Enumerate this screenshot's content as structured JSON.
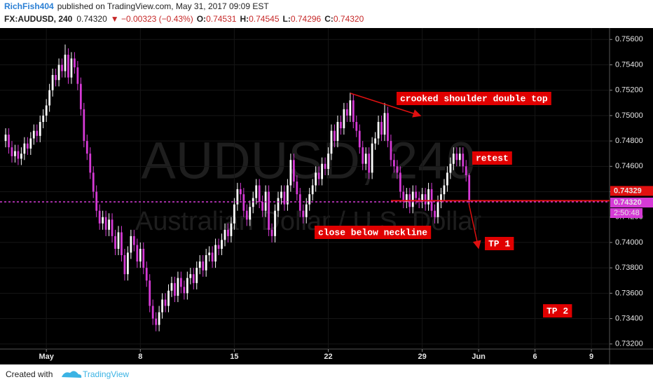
{
  "header": {
    "author": "RichFish404",
    "published": "published on TradingView.com, May 31, 2017 09:09 EST"
  },
  "footer": {
    "created": "Created with",
    "brand": "TradingView"
  },
  "chart_data": {
    "type": "candlestick",
    "symbol": "FX:AUDUSD, 240",
    "last": "0.74320",
    "change": "▼ −0.00323 (−0.43%)",
    "quote": [
      {
        "label": "O:",
        "value": "0.74531"
      },
      {
        "label": "H:",
        "value": "0.74545"
      },
      {
        "label": "L:",
        "value": "0.74296"
      },
      {
        "label": "C:",
        "value": "0.74320"
      }
    ],
    "watermark": [
      "AUDUSD, 240",
      "Australian Dollar / U.S. Dollar"
    ],
    "up_color": "#ffffff",
    "down_color": "#d63ad6",
    "grid": true,
    "open": [
      0.748,
      0.7485,
      0.7475,
      0.7468,
      0.7472,
      0.7466,
      0.747,
      0.7478,
      0.7474,
      0.7482,
      0.7488,
      0.7484,
      0.7495,
      0.75,
      0.7508,
      0.752,
      0.7532,
      0.7528,
      0.754,
      0.7535,
      0.7548,
      0.753,
      0.7545,
      0.7538,
      0.7525,
      0.7505,
      0.748,
      0.747,
      0.7455,
      0.744,
      0.7425,
      0.7415,
      0.742,
      0.741,
      0.7418,
      0.7405,
      0.7395,
      0.7408,
      0.739,
      0.7375,
      0.7392,
      0.7405,
      0.7398,
      0.7385,
      0.7395,
      0.738,
      0.737,
      0.735,
      0.734,
      0.7335,
      0.7345,
      0.7355,
      0.735,
      0.7362,
      0.7368,
      0.7358,
      0.7372,
      0.7365,
      0.736,
      0.7372,
      0.7375,
      0.7368,
      0.738,
      0.7385,
      0.7378,
      0.739,
      0.7392,
      0.7385,
      0.7398,
      0.7395,
      0.7402,
      0.741,
      0.7405,
      0.7415,
      0.743,
      0.7442,
      0.7438,
      0.7425,
      0.7418,
      0.7428,
      0.7435,
      0.7445,
      0.7432,
      0.7425,
      0.744,
      0.741,
      0.7405,
      0.7425,
      0.7435,
      0.744,
      0.743,
      0.7445,
      0.7465,
      0.7448,
      0.7438,
      0.7425,
      0.742,
      0.743,
      0.7438,
      0.7445,
      0.7455,
      0.745,
      0.7462,
      0.7458,
      0.747,
      0.7488,
      0.748,
      0.7495,
      0.749,
      0.7505,
      0.75,
      0.7512,
      0.7495,
      0.7488,
      0.7475,
      0.7462,
      0.747,
      0.7455,
      0.7478,
      0.7482,
      0.7495,
      0.7485,
      0.7502,
      0.748,
      0.7465,
      0.746,
      0.7455,
      0.744,
      0.7432,
      0.7438,
      0.7428,
      0.744,
      0.7435,
      0.7432,
      0.7438,
      0.743,
      0.7442,
      0.7425,
      0.742,
      0.7432,
      0.7438,
      0.7445,
      0.7455,
      0.7462,
      0.747,
      0.7465,
      0.747,
      0.746,
      0.74531
    ],
    "high": [
      0.749,
      0.749,
      0.748,
      0.7477,
      0.7477,
      0.7475,
      0.7483,
      0.7483,
      0.7487,
      0.7493,
      0.7493,
      0.75,
      0.7505,
      0.7513,
      0.7525,
      0.7537,
      0.7537,
      0.7545,
      0.7545,
      0.7556,
      0.7553,
      0.755,
      0.755,
      0.7543,
      0.753,
      0.751,
      0.7485,
      0.7475,
      0.746,
      0.7445,
      0.743,
      0.7425,
      0.7425,
      0.7423,
      0.7423,
      0.741,
      0.7413,
      0.7413,
      0.7395,
      0.7397,
      0.741,
      0.741,
      0.7403,
      0.74,
      0.74,
      0.7385,
      0.7375,
      0.7355,
      0.7345,
      0.735,
      0.736,
      0.736,
      0.7367,
      0.7373,
      0.7373,
      0.7377,
      0.7377,
      0.737,
      0.7377,
      0.738,
      0.738,
      0.7385,
      0.739,
      0.739,
      0.7395,
      0.7397,
      0.7397,
      0.7403,
      0.7403,
      0.7407,
      0.7415,
      0.7415,
      0.742,
      0.7435,
      0.7447,
      0.7447,
      0.7443,
      0.743,
      0.7433,
      0.744,
      0.745,
      0.745,
      0.7437,
      0.7445,
      0.7445,
      0.7415,
      0.743,
      0.744,
      0.7445,
      0.7445,
      0.745,
      0.747,
      0.747,
      0.7453,
      0.7443,
      0.743,
      0.7435,
      0.7443,
      0.745,
      0.746,
      0.746,
      0.7467,
      0.7467,
      0.7475,
      0.7493,
      0.7493,
      0.75,
      0.75,
      0.751,
      0.751,
      0.7518,
      0.7517,
      0.75,
      0.7493,
      0.748,
      0.7475,
      0.7475,
      0.7483,
      0.7487,
      0.75,
      0.75,
      0.751,
      0.7507,
      0.7485,
      0.747,
      0.7465,
      0.746,
      0.7445,
      0.7443,
      0.7443,
      0.7445,
      0.7445,
      0.744,
      0.7443,
      0.7443,
      0.7447,
      0.7447,
      0.743,
      0.7437,
      0.7443,
      0.745,
      0.746,
      0.7467,
      0.7475,
      0.7475,
      0.7475,
      0.7475,
      0.7465,
      0.74545
    ],
    "low": [
      0.7475,
      0.747,
      0.7463,
      0.7463,
      0.7461,
      0.7461,
      0.7465,
      0.7469,
      0.7469,
      0.7477,
      0.7479,
      0.7479,
      0.749,
      0.7495,
      0.7503,
      0.7515,
      0.7523,
      0.7523,
      0.753,
      0.753,
      0.7525,
      0.7525,
      0.7533,
      0.752,
      0.75,
      0.7475,
      0.7465,
      0.745,
      0.7435,
      0.742,
      0.741,
      0.741,
      0.7405,
      0.7405,
      0.74,
      0.739,
      0.739,
      0.7385,
      0.737,
      0.737,
      0.7387,
      0.7393,
      0.738,
      0.738,
      0.7375,
      0.7365,
      0.7345,
      0.7335,
      0.733,
      0.733,
      0.734,
      0.7345,
      0.7345,
      0.7357,
      0.7353,
      0.7353,
      0.736,
      0.7355,
      0.7355,
      0.7367,
      0.7363,
      0.7363,
      0.7375,
      0.7373,
      0.7373,
      0.7385,
      0.738,
      0.738,
      0.739,
      0.739,
      0.7397,
      0.74,
      0.74,
      0.741,
      0.7425,
      0.7433,
      0.742,
      0.7413,
      0.7413,
      0.7423,
      0.743,
      0.7427,
      0.742,
      0.742,
      0.7405,
      0.74,
      0.74,
      0.742,
      0.743,
      0.7425,
      0.7425,
      0.744,
      0.7443,
      0.7433,
      0.742,
      0.7415,
      0.7415,
      0.7425,
      0.7433,
      0.744,
      0.7445,
      0.7445,
      0.7453,
      0.7453,
      0.7465,
      0.7475,
      0.7475,
      0.7485,
      0.7485,
      0.7495,
      0.7495,
      0.749,
      0.7483,
      0.747,
      0.7457,
      0.7457,
      0.745,
      0.745,
      0.7473,
      0.7477,
      0.748,
      0.748,
      0.7475,
      0.746,
      0.7455,
      0.745,
      0.7435,
      0.7427,
      0.7427,
      0.7423,
      0.7423,
      0.743,
      0.7427,
      0.7427,
      0.7425,
      0.7425,
      0.742,
      0.7415,
      0.7415,
      0.7427,
      0.7433,
      0.744,
      0.745,
      0.7457,
      0.746,
      0.746,
      0.7455,
      0.7448,
      0.74296
    ],
    "close": [
      0.7485,
      0.7475,
      0.7468,
      0.7472,
      0.7466,
      0.747,
      0.7478,
      0.7474,
      0.7482,
      0.7488,
      0.7484,
      0.7495,
      0.75,
      0.7508,
      0.752,
      0.7532,
      0.7528,
      0.754,
      0.7535,
      0.7548,
      0.753,
      0.7545,
      0.7538,
      0.7525,
      0.7505,
      0.748,
      0.747,
      0.7455,
      0.744,
      0.7425,
      0.7415,
      0.742,
      0.741,
      0.7418,
      0.7405,
      0.7395,
      0.7408,
      0.739,
      0.7375,
      0.7392,
      0.7405,
      0.7398,
      0.7385,
      0.7395,
      0.738,
      0.737,
      0.735,
      0.734,
      0.7335,
      0.7345,
      0.7355,
      0.735,
      0.7362,
      0.7368,
      0.7358,
      0.7372,
      0.7365,
      0.736,
      0.7372,
      0.7375,
      0.7368,
      0.738,
      0.7385,
      0.7378,
      0.739,
      0.7392,
      0.7385,
      0.7398,
      0.7395,
      0.7402,
      0.741,
      0.7405,
      0.7415,
      0.743,
      0.7442,
      0.7438,
      0.7425,
      0.7418,
      0.7428,
      0.7435,
      0.7445,
      0.7432,
      0.7425,
      0.744,
      0.741,
      0.7405,
      0.7425,
      0.7435,
      0.744,
      0.743,
      0.7445,
      0.7465,
      0.7448,
      0.7438,
      0.7425,
      0.742,
      0.743,
      0.7438,
      0.7445,
      0.7455,
      0.745,
      0.7462,
      0.7458,
      0.747,
      0.7488,
      0.748,
      0.7495,
      0.749,
      0.7505,
      0.75,
      0.7512,
      0.7495,
      0.7488,
      0.7475,
      0.7462,
      0.747,
      0.7455,
      0.7478,
      0.7482,
      0.7495,
      0.7485,
      0.7502,
      0.748,
      0.7465,
      0.746,
      0.7455,
      0.744,
      0.7432,
      0.7438,
      0.7428,
      0.744,
      0.7435,
      0.7432,
      0.7438,
      0.743,
      0.7442,
      0.7425,
      0.742,
      0.7432,
      0.7438,
      0.7445,
      0.7455,
      0.7462,
      0.747,
      0.7465,
      0.747,
      0.746,
      0.7453,
      0.7432
    ],
    "xlim": [
      -1.8,
      192.8
    ],
    "xticks": [
      {
        "value": 13,
        "label": "May"
      },
      {
        "value": 43,
        "label": "8"
      },
      {
        "value": 73,
        "label": "15"
      },
      {
        "value": 103,
        "label": "22"
      },
      {
        "value": 133,
        "label": "29"
      },
      {
        "value": 151,
        "label": "Jun"
      },
      {
        "value": 169,
        "label": "6"
      },
      {
        "value": 187,
        "label": "9"
      }
    ],
    "ylim": [
      0.7316,
      0.7569
    ],
    "yticks": [
      {
        "value": 0.732,
        "label": "0.73200"
      },
      {
        "value": 0.734,
        "label": "0.73400"
      },
      {
        "value": 0.736,
        "label": "0.73600"
      },
      {
        "value": 0.738,
        "label": "0.73800"
      },
      {
        "value": 0.74,
        "label": "0.74000"
      },
      {
        "value": 0.742,
        "label": "0.74200"
      },
      {
        "value": 0.744,
        "label": "0.74400"
      },
      {
        "value": 0.746,
        "label": "0.74600"
      },
      {
        "value": 0.748,
        "label": "0.74800"
      },
      {
        "value": 0.75,
        "label": "0.75000"
      },
      {
        "value": 0.752,
        "label": "0.75200"
      },
      {
        "value": 0.754,
        "label": "0.75400"
      },
      {
        "value": 0.756,
        "label": "0.75600"
      }
    ],
    "price_tags": [
      {
        "value": 0.74329,
        "label": "0.74329",
        "color": "#e01010"
      },
      {
        "value": 0.7432,
        "label": "0.74320",
        "color": "#d63ad6"
      }
    ],
    "countdown": "2:50:48",
    "annotations": [
      "crooked shoulder double top",
      "retest",
      "close below neckline",
      "TP 1",
      "TP 2"
    ]
  }
}
